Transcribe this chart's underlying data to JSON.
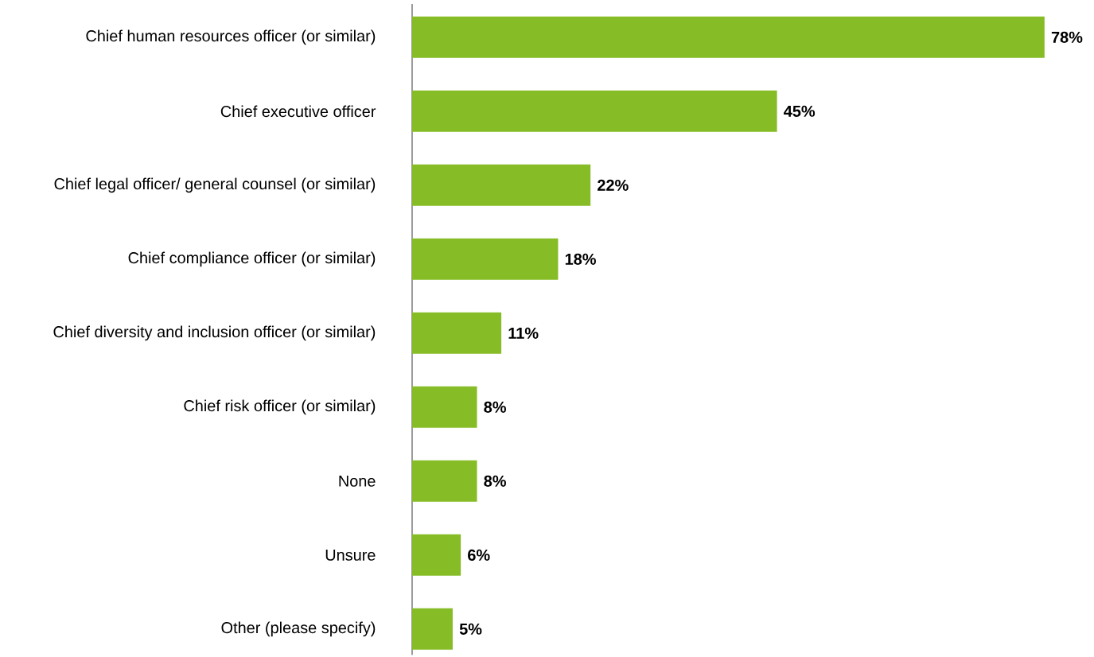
{
  "chart_data": {
    "type": "bar",
    "orientation": "horizontal",
    "categories": [
      "Chief human resources officer (or similar)",
      "Chief executive officer",
      "Chief legal officer/ general counsel (or similar)",
      "Chief compliance officer (or similar)",
      "Chief diversity and inclusion officer (or similar)",
      "Chief risk officer (or similar)",
      "None",
      "Unsure",
      "Other (please specify)"
    ],
    "values": [
      78,
      45,
      22,
      18,
      11,
      8,
      8,
      6,
      5
    ],
    "value_labels": [
      "78%",
      "45%",
      "22%",
      "18%",
      "11%",
      "8%",
      "8%",
      "6%",
      "5%"
    ],
    "color": "#86bc25"
  }
}
